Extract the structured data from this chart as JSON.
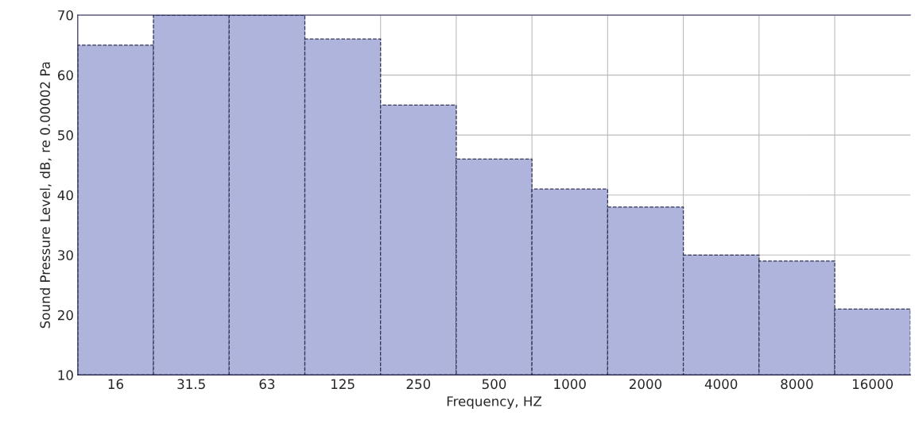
{
  "chart_data": {
    "type": "bar",
    "xlabel": "Frequency, HZ",
    "ylabel": "Sound Pressure Level, dB, re 0.00002 Pa",
    "categories": [
      "16",
      "31.5",
      "63",
      "125",
      "250",
      "500",
      "1000",
      "2000",
      "4000",
      "8000",
      "16000"
    ],
    "values": [
      65,
      70,
      70,
      66,
      55,
      46,
      41,
      38,
      30,
      29,
      21
    ],
    "color": "#aeb4dc",
    "ylim": [
      10,
      70
    ],
    "yticks": [
      10,
      20,
      30,
      40,
      50,
      60,
      70
    ],
    "grid": true,
    "line_style": "dashed"
  }
}
